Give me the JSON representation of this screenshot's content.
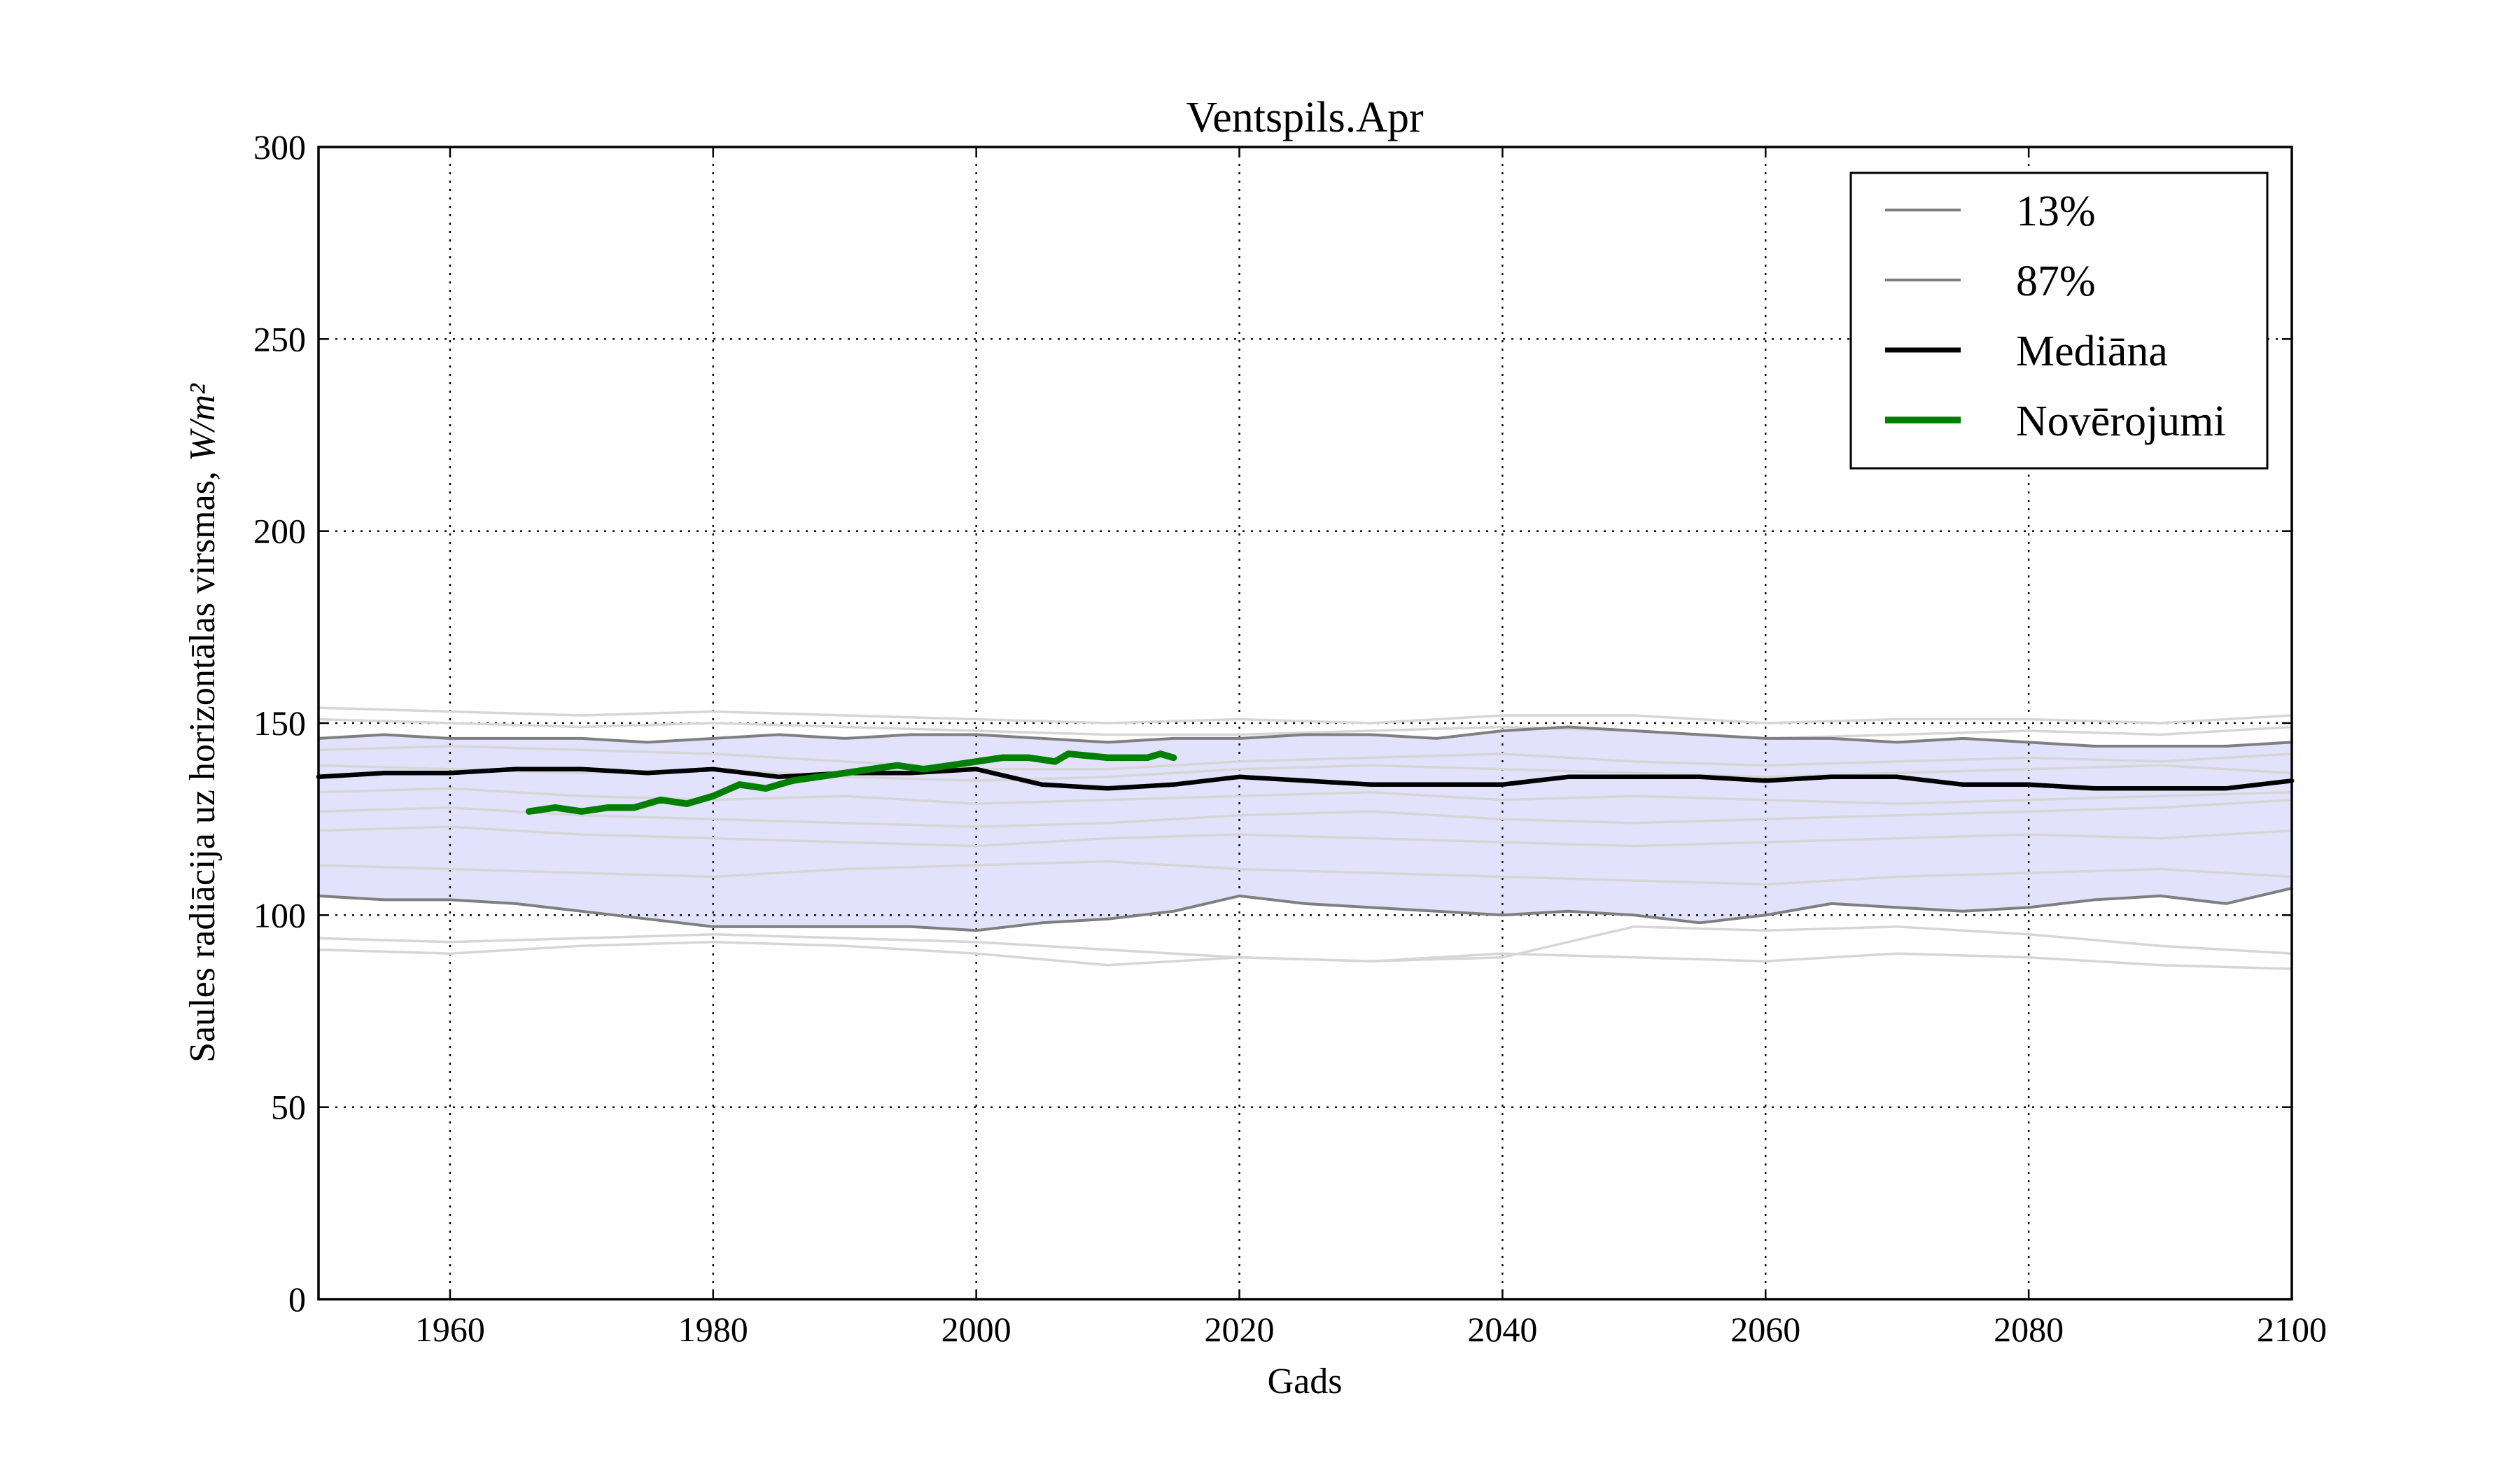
{
  "chart_data": {
    "type": "line",
    "title": "Ventspils.Apr",
    "xlabel": "Gads",
    "ylabel": "Saules radiācija uz horizontālas virsmas,",
    "ylabel_unit": "W/m²",
    "xlim": [
      1950,
      2100
    ],
    "ylim": [
      0,
      300
    ],
    "xticks": [
      1960,
      1980,
      2000,
      2020,
      2040,
      2060,
      2080,
      2100
    ],
    "yticks": [
      0,
      50,
      100,
      150,
      200,
      250,
      300
    ],
    "grid": true,
    "legend_position": "top-right",
    "colors": {
      "band_fill": "#e2e2fc",
      "percentile": "#7f7f7f",
      "ensemble": "#d6d6d6",
      "median": "#000000",
      "observed": "#007f00"
    },
    "legend": [
      {
        "label": "13%",
        "series": "p13"
      },
      {
        "label": "87%",
        "series": "p87"
      },
      {
        "label": "Mediāna",
        "series": "median"
      },
      {
        "label": "Novērojumi",
        "series": "observed"
      }
    ],
    "ensemble_members": [
      {
        "name": "member-1",
        "x": [
          1950,
          1960,
          1970,
          1980,
          1990,
          2000,
          2010,
          2020,
          2030,
          2040,
          2050,
          2060,
          2070,
          2080,
          2090,
          2100
        ],
        "values": [
          154,
          153,
          152,
          153,
          152,
          151,
          150,
          151,
          150,
          152,
          152,
          150,
          151,
          151,
          150,
          152
        ]
      },
      {
        "name": "member-2",
        "x": [
          1950,
          1960,
          1970,
          1980,
          1990,
          2000,
          2010,
          2020,
          2030,
          2040,
          2050,
          2060,
          2070,
          2080,
          2090,
          2100
        ],
        "values": [
          151,
          150,
          149,
          150,
          149,
          148,
          147,
          147,
          148,
          149,
          148,
          146,
          147,
          148,
          147,
          149
        ]
      },
      {
        "name": "member-3",
        "x": [
          1950,
          1960,
          1970,
          1980,
          1990,
          2000,
          2010,
          2020,
          2030,
          2040,
          2050,
          2060,
          2070,
          2080,
          2090,
          2100
        ],
        "values": [
          143,
          144,
          143,
          142,
          140,
          138,
          138,
          140,
          141,
          142,
          140,
          139,
          140,
          141,
          140,
          142
        ]
      },
      {
        "name": "member-4",
        "x": [
          1950,
          1960,
          1970,
          1980,
          1990,
          2000,
          2010,
          2020,
          2030,
          2040,
          2050,
          2060,
          2070,
          2080,
          2090,
          2100
        ],
        "values": [
          139,
          138,
          137,
          138,
          136,
          135,
          136,
          138,
          139,
          138,
          137,
          136,
          137,
          138,
          139,
          137
        ]
      },
      {
        "name": "member-5",
        "x": [
          1950,
          1960,
          1970,
          1980,
          1990,
          2000,
          2010,
          2020,
          2030,
          2040,
          2050,
          2060,
          2070,
          2080,
          2090,
          2100
        ],
        "values": [
          132,
          133,
          131,
          130,
          131,
          129,
          130,
          131,
          132,
          130,
          131,
          130,
          129,
          130,
          131,
          132
        ]
      },
      {
        "name": "member-6",
        "x": [
          1950,
          1960,
          1970,
          1980,
          1990,
          2000,
          2010,
          2020,
          2030,
          2040,
          2050,
          2060,
          2070,
          2080,
          2090,
          2100
        ],
        "values": [
          127,
          128,
          126,
          125,
          124,
          123,
          124,
          126,
          127,
          125,
          124,
          125,
          126,
          127,
          128,
          130
        ]
      },
      {
        "name": "member-7",
        "x": [
          1950,
          1960,
          1970,
          1980,
          1990,
          2000,
          2010,
          2020,
          2030,
          2040,
          2050,
          2060,
          2070,
          2080,
          2090,
          2100
        ],
        "values": [
          122,
          123,
          121,
          120,
          119,
          118,
          120,
          121,
          120,
          119,
          118,
          119,
          120,
          121,
          120,
          122
        ]
      },
      {
        "name": "member-8",
        "x": [
          1950,
          1960,
          1970,
          1980,
          1990,
          2000,
          2010,
          2020,
          2030,
          2040,
          2050,
          2060,
          2070,
          2080,
          2090,
          2100
        ],
        "values": [
          113,
          112,
          111,
          110,
          112,
          113,
          114,
          112,
          111,
          110,
          109,
          108,
          110,
          111,
          112,
          110
        ]
      },
      {
        "name": "member-9",
        "x": [
          1950,
          1960,
          1970,
          1980,
          1990,
          2000,
          2010,
          2020,
          2030,
          2040,
          2050,
          2060,
          2070,
          2080,
          2090,
          2100
        ],
        "values": [
          94,
          93,
          94,
          95,
          94,
          93,
          91,
          89,
          88,
          90,
          89,
          88,
          90,
          89,
          87,
          86
        ]
      },
      {
        "name": "member-10",
        "x": [
          1950,
          1960,
          1970,
          1980,
          1990,
          2000,
          2010,
          2020,
          2030,
          2040,
          2050,
          2060,
          2070,
          2080,
          2090,
          2100
        ],
        "values": [
          91,
          90,
          92,
          93,
          92,
          90,
          87,
          89,
          88,
          89,
          97,
          96,
          97,
          95,
          92,
          90
        ]
      }
    ],
    "series": [
      {
        "name": "p13",
        "label": "13%",
        "x": [
          1950,
          1955,
          1960,
          1965,
          1970,
          1975,
          1980,
          1985,
          1990,
          1995,
          2000,
          2005,
          2010,
          2015,
          2020,
          2025,
          2030,
          2035,
          2040,
          2045,
          2050,
          2055,
          2060,
          2065,
          2070,
          2075,
          2080,
          2085,
          2090,
          2095,
          2100
        ],
        "values": [
          105,
          104,
          104,
          103,
          101,
          99,
          97,
          97,
          97,
          97,
          96,
          98,
          99,
          101,
          105,
          103,
          102,
          101,
          100,
          101,
          100,
          98,
          100,
          103,
          102,
          101,
          102,
          104,
          105,
          103,
          107
        ]
      },
      {
        "name": "p87",
        "label": "87%",
        "x": [
          1950,
          1955,
          1960,
          1965,
          1970,
          1975,
          1980,
          1985,
          1990,
          1995,
          2000,
          2005,
          2010,
          2015,
          2020,
          2025,
          2030,
          2035,
          2040,
          2045,
          2050,
          2055,
          2060,
          2065,
          2070,
          2075,
          2080,
          2085,
          2090,
          2095,
          2100
        ],
        "values": [
          146,
          147,
          146,
          146,
          146,
          145,
          146,
          147,
          146,
          147,
          147,
          146,
          145,
          146,
          146,
          147,
          147,
          146,
          148,
          149,
          148,
          147,
          146,
          146,
          145,
          146,
          145,
          144,
          144,
          144,
          145
        ]
      },
      {
        "name": "median",
        "label": "Mediāna",
        "x": [
          1950,
          1955,
          1960,
          1965,
          1970,
          1975,
          1980,
          1985,
          1990,
          1995,
          2000,
          2005,
          2010,
          2015,
          2020,
          2025,
          2030,
          2035,
          2040,
          2045,
          2050,
          2055,
          2060,
          2065,
          2070,
          2075,
          2080,
          2085,
          2090,
          2095,
          2100
        ],
        "values": [
          136,
          137,
          137,
          138,
          138,
          137,
          138,
          136,
          137,
          137,
          138,
          134,
          133,
          134,
          136,
          135,
          134,
          134,
          134,
          136,
          136,
          136,
          135,
          136,
          136,
          134,
          134,
          133,
          133,
          133,
          135
        ]
      },
      {
        "name": "observed",
        "label": "Novērojumi",
        "x": [
          1966,
          1968,
          1970,
          1972,
          1974,
          1976,
          1978,
          1980,
          1982,
          1984,
          1986,
          1988,
          1990,
          1992,
          1994,
          1996,
          1998,
          2000,
          2002,
          2004,
          2006,
          2007,
          2010,
          2013,
          2014,
          2015
        ],
        "values": [
          127,
          128,
          127,
          128,
          128,
          130,
          129,
          131,
          134,
          133,
          135,
          136,
          137,
          138,
          139,
          138,
          139,
          140,
          141,
          141,
          140,
          142,
          141,
          141,
          142,
          141
        ]
      }
    ]
  }
}
